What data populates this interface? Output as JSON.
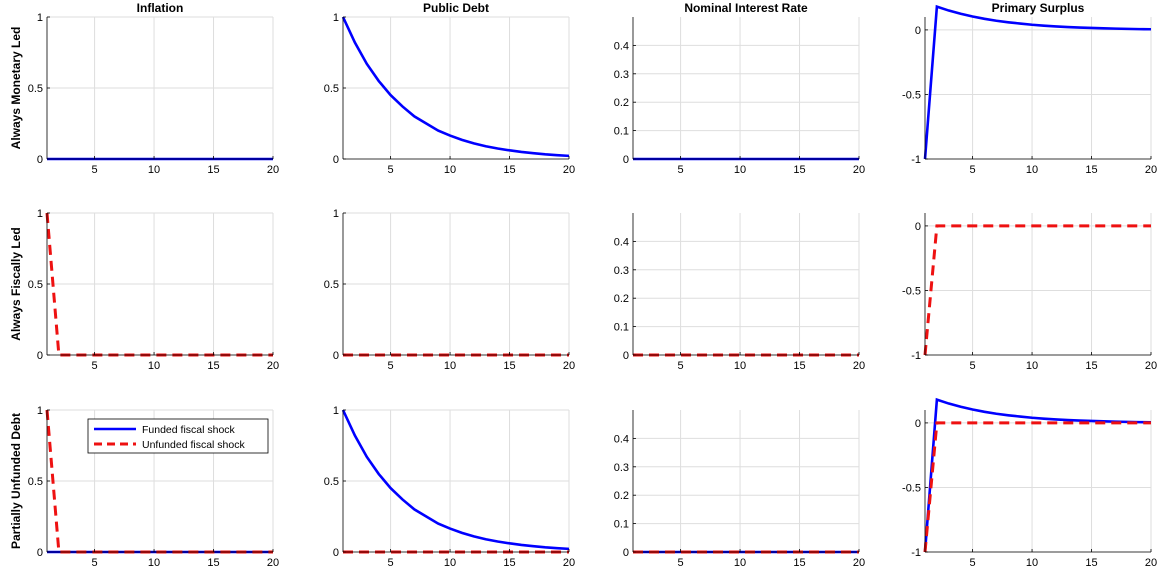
{
  "colors": {
    "funded": "#0000ff",
    "unfunded": "#ee1111",
    "grid": "#dedede",
    "axis": "#000000"
  },
  "column_titles": [
    "Inflation",
    "Public Debt",
    "Nominal Interest Rate",
    "Primary Surplus"
  ],
  "row_labels": [
    "Always Monetary Led",
    "Always Fiscally Led",
    "Partially Unfunded Debt"
  ],
  "legend": {
    "labels": [
      "Funded fiscal shock",
      "Unfunded fiscal shock"
    ],
    "location": "top-right of bottom-left panel"
  },
  "chart_data": {
    "type": "line",
    "layout": "3x4 grid of panels",
    "grid": true,
    "x": [
      1,
      2,
      3,
      4,
      5,
      6,
      7,
      8,
      9,
      10,
      11,
      12,
      13,
      14,
      15,
      16,
      17,
      18,
      19,
      20
    ],
    "xlim": [
      1,
      20
    ],
    "xticks": [
      5,
      10,
      15,
      20
    ],
    "columns": [
      {
        "title": "Inflation",
        "ylim": [
          0,
          1
        ],
        "yticks": [
          0,
          0.5,
          1
        ],
        "ytick_labels": [
          "0",
          "0.5",
          "1"
        ]
      },
      {
        "title": "Public Debt",
        "ylim": [
          0,
          1
        ],
        "yticks": [
          0,
          0.5,
          1
        ],
        "ytick_labels": [
          "0",
          "0.5",
          "1"
        ]
      },
      {
        "title": "Nominal Interest Rate",
        "ylim": [
          0,
          0.5
        ],
        "yticks": [
          0,
          0.1,
          0.2,
          0.3,
          0.4
        ],
        "ytick_labels": [
          "0",
          "0.1",
          "0.2",
          "0.3",
          "0.4"
        ]
      },
      {
        "title": "Primary Surplus",
        "ylim": [
          -1,
          0.1
        ],
        "yticks": [
          -1,
          -0.5,
          0
        ],
        "ytick_labels": [
          "-1",
          "-0.5",
          "0"
        ]
      }
    ],
    "rows": [
      {
        "label": "Always Monetary Led",
        "panels": [
          {
            "series": [
              {
                "name": "Funded fiscal shock",
                "style": "solid",
                "values": [
                  0,
                  0,
                  0,
                  0,
                  0,
                  0,
                  0,
                  0,
                  0,
                  0,
                  0,
                  0,
                  0,
                  0,
                  0,
                  0,
                  0,
                  0,
                  0,
                  0
                ]
              }
            ]
          },
          {
            "series": [
              {
                "name": "Funded fiscal shock",
                "style": "solid",
                "values": [
                  1,
                  0.82,
                  0.67,
                  0.55,
                  0.45,
                  0.37,
                  0.3,
                  0.25,
                  0.2,
                  0.165,
                  0.135,
                  0.11,
                  0.09,
                  0.074,
                  0.061,
                  0.05,
                  0.041,
                  0.033,
                  0.027,
                  0.022
                ]
              }
            ]
          },
          {
            "series": [
              {
                "name": "Funded fiscal shock",
                "style": "solid",
                "values": [
                  0,
                  0,
                  0,
                  0,
                  0,
                  0,
                  0,
                  0,
                  0,
                  0,
                  0,
                  0,
                  0,
                  0,
                  0,
                  0,
                  0,
                  0,
                  0,
                  0
                ]
              }
            ]
          },
          {
            "series": [
              {
                "name": "Funded fiscal shock",
                "style": "solid",
                "values": [
                  -1,
                  0.18,
                  0.15,
                  0.125,
                  0.104,
                  0.086,
                  0.071,
                  0.059,
                  0.049,
                  0.04,
                  0.033,
                  0.027,
                  0.022,
                  0.018,
                  0.015,
                  0.012,
                  0.01,
                  0.008,
                  0.006,
                  0.005
                ]
              }
            ]
          }
        ]
      },
      {
        "label": "Always Fiscally Led",
        "panels": [
          {
            "series": [
              {
                "name": "Unfunded fiscal shock",
                "style": "dashed",
                "values": [
                  1,
                  0,
                  0,
                  0,
                  0,
                  0,
                  0,
                  0,
                  0,
                  0,
                  0,
                  0,
                  0,
                  0,
                  0,
                  0,
                  0,
                  0,
                  0,
                  0
                ]
              }
            ]
          },
          {
            "series": [
              {
                "name": "Unfunded fiscal shock",
                "style": "dashed",
                "values": [
                  0,
                  0,
                  0,
                  0,
                  0,
                  0,
                  0,
                  0,
                  0,
                  0,
                  0,
                  0,
                  0,
                  0,
                  0,
                  0,
                  0,
                  0,
                  0,
                  0
                ]
              }
            ]
          },
          {
            "series": [
              {
                "name": "Unfunded fiscal shock",
                "style": "dashed",
                "values": [
                  0,
                  0,
                  0,
                  0,
                  0,
                  0,
                  0,
                  0,
                  0,
                  0,
                  0,
                  0,
                  0,
                  0,
                  0,
                  0,
                  0,
                  0,
                  0,
                  0
                ]
              }
            ]
          },
          {
            "series": [
              {
                "name": "Unfunded fiscal shock",
                "style": "dashed",
                "values": [
                  -1,
                  0,
                  0,
                  0,
                  0,
                  0,
                  0,
                  0,
                  0,
                  0,
                  0,
                  0,
                  0,
                  0,
                  0,
                  0,
                  0,
                  0,
                  0,
                  0
                ]
              }
            ]
          }
        ]
      },
      {
        "label": "Partially Unfunded Debt",
        "panels": [
          {
            "series": [
              {
                "name": "Funded fiscal shock",
                "style": "solid",
                "values": [
                  0,
                  0,
                  0,
                  0,
                  0,
                  0,
                  0,
                  0,
                  0,
                  0,
                  0,
                  0,
                  0,
                  0,
                  0,
                  0,
                  0,
                  0,
                  0,
                  0
                ]
              },
              {
                "name": "Unfunded fiscal shock",
                "style": "dashed",
                "values": [
                  1,
                  0,
                  0,
                  0,
                  0,
                  0,
                  0,
                  0,
                  0,
                  0,
                  0,
                  0,
                  0,
                  0,
                  0,
                  0,
                  0,
                  0,
                  0,
                  0
                ]
              }
            ]
          },
          {
            "series": [
              {
                "name": "Funded fiscal shock",
                "style": "solid",
                "values": [
                  1,
                  0.82,
                  0.67,
                  0.55,
                  0.45,
                  0.37,
                  0.3,
                  0.25,
                  0.2,
                  0.165,
                  0.135,
                  0.11,
                  0.09,
                  0.074,
                  0.061,
                  0.05,
                  0.041,
                  0.033,
                  0.027,
                  0.022
                ]
              },
              {
                "name": "Unfunded fiscal shock",
                "style": "dashed",
                "values": [
                  0,
                  0,
                  0,
                  0,
                  0,
                  0,
                  0,
                  0,
                  0,
                  0,
                  0,
                  0,
                  0,
                  0,
                  0,
                  0,
                  0,
                  0,
                  0,
                  0
                ]
              }
            ]
          },
          {
            "series": [
              {
                "name": "Funded fiscal shock",
                "style": "solid",
                "values": [
                  0,
                  0,
                  0,
                  0,
                  0,
                  0,
                  0,
                  0,
                  0,
                  0,
                  0,
                  0,
                  0,
                  0,
                  0,
                  0,
                  0,
                  0,
                  0,
                  0
                ]
              },
              {
                "name": "Unfunded fiscal shock",
                "style": "dashed",
                "values": [
                  0,
                  0,
                  0,
                  0,
                  0,
                  0,
                  0,
                  0,
                  0,
                  0,
                  0,
                  0,
                  0,
                  0,
                  0,
                  0,
                  0,
                  0,
                  0,
                  0
                ]
              }
            ]
          },
          {
            "series": [
              {
                "name": "Funded fiscal shock",
                "style": "solid",
                "values": [
                  -1,
                  0.18,
                  0.15,
                  0.125,
                  0.104,
                  0.086,
                  0.071,
                  0.059,
                  0.049,
                  0.04,
                  0.033,
                  0.027,
                  0.022,
                  0.018,
                  0.015,
                  0.012,
                  0.01,
                  0.008,
                  0.006,
                  0.005
                ]
              },
              {
                "name": "Unfunded fiscal shock",
                "style": "dashed",
                "values": [
                  -1,
                  0,
                  0,
                  0,
                  0,
                  0,
                  0,
                  0,
                  0,
                  0,
                  0,
                  0,
                  0,
                  0,
                  0,
                  0,
                  0,
                  0,
                  0,
                  0
                ]
              }
            ]
          }
        ]
      }
    ]
  }
}
